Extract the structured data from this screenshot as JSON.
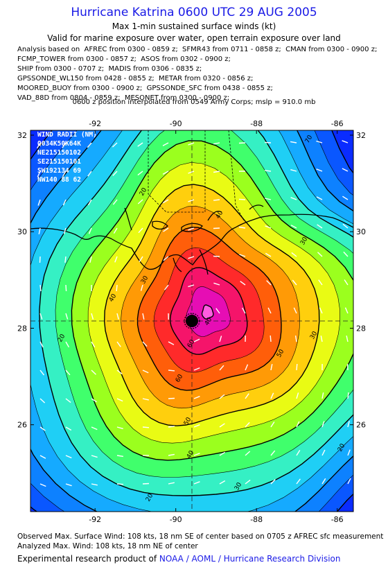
{
  "title": "Hurricane Katrina 0600 UTC 29 AUG 2005",
  "subtitle": "Max 1-min sustained surface winds (kt)",
  "subtitle2": "Valid for marine exposure over water, open terrain exposure over land",
  "analysis_lines": [
    "Analysis based on  AFREC from 0300 - 0859 z;  SFMR43 from 0711 - 0858 z;  CMAN from 0300 - 0900 z;",
    "FCMP_TOWER from 0300 - 0857 z;  ASOS from 0302 - 0900 z;",
    "SHIP from 0300 - 0707 z;  MADIS from 0306 - 0835 z;",
    "GPSSONDE_WL150 from 0428 - 0855 z;  METAR from 0320 - 0856 z;",
    "MOORED_BUOY from 0300 - 0900 z;  GPSSONDE_SFC from 0438 - 0855 z;",
    "VAD_88D from 0804 - 0859 z;  MESONET from 0300 - 0900 z;"
  ],
  "position_note": "0600 z position interpolated from 0549 Army Corps; mslp = 910.0 mb",
  "wind_radii": {
    "title": "WIND RADII (NM)",
    "header": "Q034K50K64K",
    "rows": [
      "NE215150102",
      "SE215150101",
      "SW192134 69",
      "NW140 88 62"
    ]
  },
  "map": {
    "lon_ticks": [
      "-92",
      "-90",
      "-88",
      "-86"
    ],
    "lat_ticks": [
      "32",
      "30",
      "28",
      "26"
    ],
    "lon_range": [
      -93.6,
      -85.6
    ],
    "lat_range": [
      24.2,
      32.1
    ],
    "center": {
      "lon": -89.6,
      "lat": 28.15
    },
    "contour_labels": [
      "70",
      "20",
      "40",
      "30",
      "40",
      "30",
      "20",
      "60",
      "50",
      "40",
      "60",
      "50",
      "40",
      "30",
      "20",
      "20",
      "30"
    ],
    "palette": {
      "outer": "#0a2cff",
      "bands": [
        "#0a57ff",
        "#0d81ff",
        "#15aaff",
        "#1fcff5",
        "#35f0c4",
        "#40ff6c",
        "#9bff1e",
        "#e9fb14",
        "#ffcf0d",
        "#ff9a06",
        "#ff5e0a",
        "#ff2a2a",
        "#f5146a",
        "#e60db4",
        "#ff5ce0"
      ]
    }
  },
  "footer": {
    "observed": "Observed Max. Surface Wind: 108 kts, 18 nm SE of center based on 0705 z AFREC sfc measurement",
    "analyzed": "Analyzed Max. Wind: 108 kts, 18 nm NE of center",
    "credit_prefix": "Experimental research product of ",
    "credit_link": "NOAA / AOML / Hurricane Research Division"
  }
}
